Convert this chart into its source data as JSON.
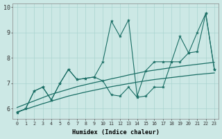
{
  "xlabel": "Humidex (Indice chaleur)",
  "bg_color": "#cce8e5",
  "line_color": "#1a6e65",
  "grid_color": "#aad4d0",
  "x": [
    0,
    1,
    2,
    3,
    4,
    5,
    6,
    7,
    8,
    9,
    10,
    11,
    12,
    13,
    14,
    15,
    16,
    17,
    18,
    19,
    20,
    21,
    22,
    23
  ],
  "line_upper": [
    5.85,
    6.0,
    6.7,
    6.85,
    6.35,
    7.0,
    7.55,
    7.15,
    7.2,
    7.25,
    7.85,
    9.45,
    8.85,
    9.5,
    6.5,
    7.5,
    7.85,
    7.85,
    7.85,
    8.85,
    8.2,
    9.0,
    9.75,
    7.55
  ],
  "line_lower": [
    5.85,
    6.0,
    6.7,
    6.85,
    6.35,
    7.0,
    7.55,
    7.15,
    7.2,
    7.25,
    7.1,
    6.55,
    6.5,
    6.85,
    6.45,
    6.5,
    6.85,
    6.85,
    7.85,
    7.85,
    8.2,
    8.25,
    9.75,
    7.55
  ],
  "trend_upper": [
    6.05,
    6.18,
    6.31,
    6.44,
    6.57,
    6.67,
    6.77,
    6.87,
    6.95,
    7.03,
    7.1,
    7.18,
    7.25,
    7.33,
    7.4,
    7.47,
    7.52,
    7.57,
    7.62,
    7.67,
    7.71,
    7.75,
    7.79,
    7.83
  ],
  "trend_lower": [
    5.88,
    5.98,
    6.09,
    6.2,
    6.3,
    6.4,
    6.5,
    6.58,
    6.66,
    6.73,
    6.8,
    6.87,
    6.93,
    6.99,
    7.05,
    7.1,
    7.15,
    7.19,
    7.23,
    7.27,
    7.31,
    7.35,
    7.38,
    7.41
  ],
  "ylim": [
    5.6,
    10.15
  ],
  "xlim": [
    -0.5,
    23.5
  ],
  "yticks": [
    6,
    7,
    8,
    9,
    10
  ],
  "xticks": [
    0,
    1,
    2,
    3,
    4,
    5,
    6,
    7,
    8,
    9,
    10,
    11,
    12,
    13,
    14,
    15,
    16,
    17,
    18,
    19,
    20,
    21,
    22,
    23
  ]
}
